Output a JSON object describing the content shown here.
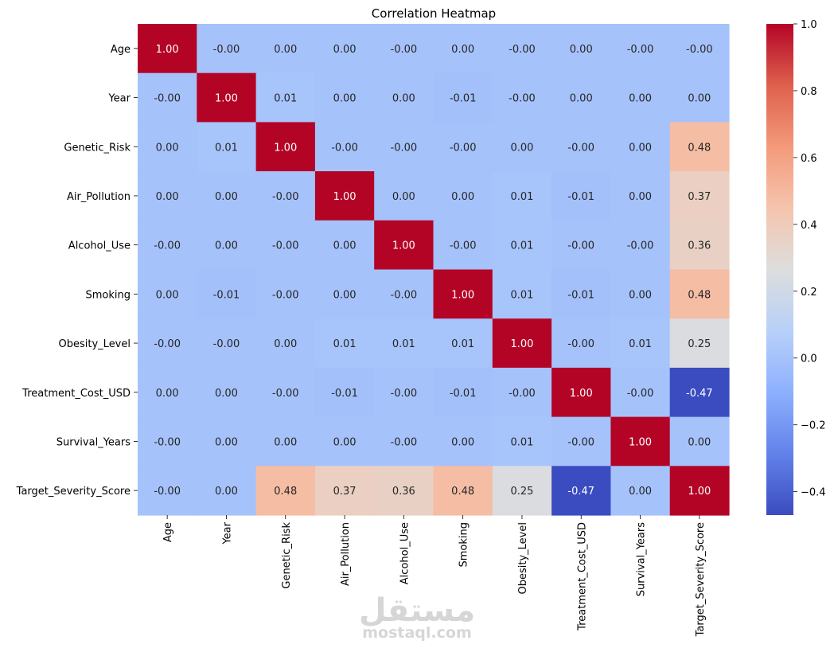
{
  "chart_data": {
    "type": "heatmap",
    "title": "Correlation Heatmap",
    "labels": [
      "Age",
      "Year",
      "Genetic_Risk",
      "Air_Pollution",
      "Alcohol_Use",
      "Smoking",
      "Obesity_Level",
      "Treatment_Cost_USD",
      "Survival_Years",
      "Target_Severity_Score"
    ],
    "matrix": [
      [
        1.0,
        -0.0,
        0.0,
        0.0,
        -0.0,
        0.0,
        -0.0,
        0.0,
        -0.0,
        -0.0
      ],
      [
        -0.0,
        1.0,
        0.01,
        0.0,
        0.0,
        -0.01,
        -0.0,
        0.0,
        0.0,
        0.0
      ],
      [
        0.0,
        0.01,
        1.0,
        -0.0,
        -0.0,
        -0.0,
        0.0,
        -0.0,
        0.0,
        0.48
      ],
      [
        0.0,
        0.0,
        -0.0,
        1.0,
        0.0,
        0.0,
        0.01,
        -0.01,
        0.0,
        0.37
      ],
      [
        -0.0,
        0.0,
        -0.0,
        0.0,
        1.0,
        -0.0,
        0.01,
        -0.0,
        -0.0,
        0.36
      ],
      [
        0.0,
        -0.01,
        -0.0,
        0.0,
        -0.0,
        1.0,
        0.01,
        -0.01,
        0.0,
        0.48
      ],
      [
        -0.0,
        -0.0,
        0.0,
        0.01,
        0.01,
        0.01,
        1.0,
        -0.0,
        0.01,
        0.25
      ],
      [
        0.0,
        0.0,
        -0.0,
        -0.01,
        -0.0,
        -0.01,
        -0.0,
        1.0,
        -0.0,
        -0.47
      ],
      [
        -0.0,
        0.0,
        0.0,
        0.0,
        -0.0,
        0.0,
        0.01,
        -0.0,
        1.0,
        0.0
      ],
      [
        -0.0,
        0.0,
        0.48,
        0.37,
        0.36,
        0.48,
        0.25,
        -0.47,
        0.0,
        1.0
      ]
    ],
    "colormap": "coolwarm",
    "vmin": -0.47,
    "vmax": 1.0,
    "colorbar_ticks": [
      "1.0",
      "0.8",
      "0.6",
      "0.4",
      "0.2",
      "0.0",
      "−0.2",
      "−0.4"
    ],
    "colorbar_tick_values": [
      1.0,
      0.8,
      0.6,
      0.4,
      0.2,
      0.0,
      -0.2,
      -0.4
    ]
  },
  "watermark": {
    "arabic": "مستقل",
    "latin": "mostaql.com"
  }
}
